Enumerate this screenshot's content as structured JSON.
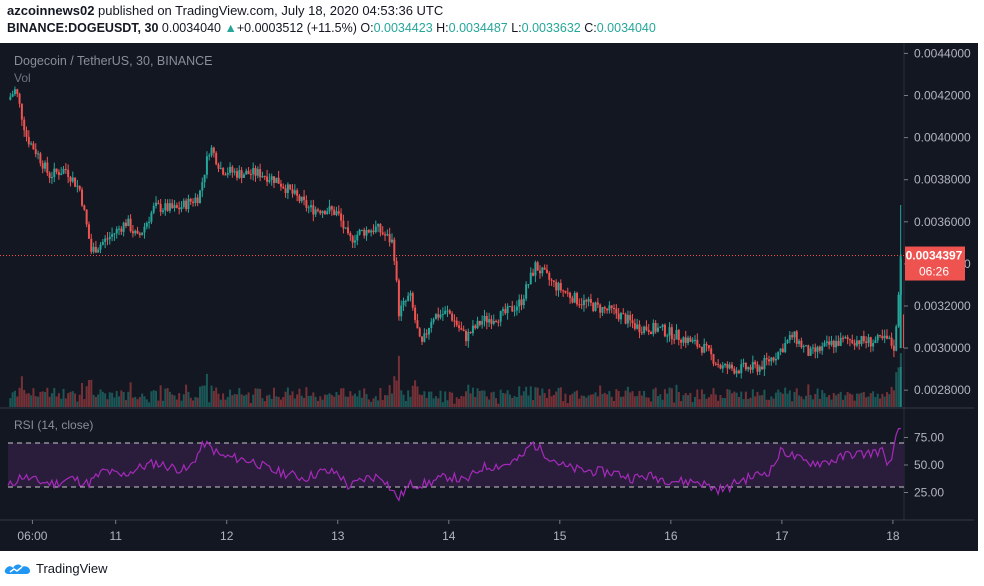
{
  "publish_line": {
    "user": "azcoinnews02",
    "text": " published on TradingView.com, July 18, 2020 04:53:36 UTC"
  },
  "ohlc_line": {
    "symbol": "BINANCE:DOGEUSDT, 30",
    "last": "0.0034040",
    "change_arrow": "▲",
    "change": "+0.0003512 (+11.5%)",
    "o_label": "O:",
    "o": "0.0034423",
    "h_label": "H:",
    "h": "0.0034487",
    "l_label": "L:",
    "l": "0.0033632",
    "c_label": "C:",
    "c": "0.0034040"
  },
  "footer": {
    "brand": "TradingView"
  },
  "colors": {
    "background": "#131722",
    "up": "#26a69a",
    "down": "#ef5350",
    "rsi_line": "#a52aba",
    "rsi_band": "#2a1d3b",
    "price_line": "#ef5350",
    "price_label_bg": "#ef5350",
    "axis_text": "#b2b5be"
  },
  "chart_data": {
    "type": "candlestick",
    "title": "Dogecoin / TetherUS, 30, BINANCE",
    "volume_label": "Vol",
    "ylim": [
      0.00272,
      0.00444
    ],
    "y_ticks": [
      "0.0044000",
      "0.0042000",
      "0.0040000",
      "0.0038000",
      "0.0036000",
      "0.0034000",
      "0.0032000",
      "0.0030000",
      "0.0028000"
    ],
    "x_ticks": [
      "06:00",
      "11",
      "12",
      "13",
      "14",
      "15",
      "16",
      "17",
      "18"
    ],
    "x_tick_days": [
      10.25,
      11,
      12,
      13,
      14,
      15,
      16,
      17,
      18
    ],
    "x_range_days": [
      10.03,
      18.1
    ],
    "current_price": {
      "value": "0.0034397",
      "countdown": "06:26"
    },
    "price_path": [
      [
        10.03,
        0.00418
      ],
      [
        10.1,
        0.00423
      ],
      [
        10.2,
        0.004
      ],
      [
        10.3,
        0.00392
      ],
      [
        10.4,
        0.00382
      ],
      [
        10.55,
        0.00385
      ],
      [
        10.68,
        0.00375
      ],
      [
        10.78,
        0.00346
      ],
      [
        10.95,
        0.00353
      ],
      [
        11.1,
        0.0036
      ],
      [
        11.2,
        0.00352
      ],
      [
        11.35,
        0.00367
      ],
      [
        11.55,
        0.00366
      ],
      [
        11.75,
        0.00372
      ],
      [
        11.85,
        0.00396
      ],
      [
        11.95,
        0.00385
      ],
      [
        12.1,
        0.00383
      ],
      [
        12.3,
        0.00383
      ],
      [
        12.45,
        0.0038
      ],
      [
        12.6,
        0.00373
      ],
      [
        12.75,
        0.00366
      ],
      [
        12.9,
        0.00366
      ],
      [
        13.0,
        0.00364
      ],
      [
        13.1,
        0.00351
      ],
      [
        13.2,
        0.00355
      ],
      [
        13.35,
        0.00357
      ],
      [
        13.5,
        0.0035
      ],
      [
        13.55,
        0.00317
      ],
      [
        13.65,
        0.00325
      ],
      [
        13.75,
        0.003
      ],
      [
        13.85,
        0.00315
      ],
      [
        14.0,
        0.00317
      ],
      [
        14.15,
        0.00305
      ],
      [
        14.3,
        0.00313
      ],
      [
        14.5,
        0.00316
      ],
      [
        14.65,
        0.00322
      ],
      [
        14.78,
        0.00339
      ],
      [
        14.95,
        0.0033
      ],
      [
        15.15,
        0.00323
      ],
      [
        15.35,
        0.00319
      ],
      [
        15.5,
        0.00317
      ],
      [
        15.7,
        0.0031
      ],
      [
        15.9,
        0.00309
      ],
      [
        16.1,
        0.00305
      ],
      [
        16.3,
        0.003
      ],
      [
        16.45,
        0.00291
      ],
      [
        16.6,
        0.0029
      ],
      [
        16.8,
        0.00291
      ],
      [
        16.95,
        0.00297
      ],
      [
        17.1,
        0.00306
      ],
      [
        17.25,
        0.00297
      ],
      [
        17.45,
        0.00302
      ],
      [
        17.6,
        0.00304
      ],
      [
        17.8,
        0.00303
      ],
      [
        17.95,
        0.00304
      ],
      [
        18.02,
        0.003
      ],
      [
        18.07,
        0.00344
      ]
    ],
    "rsi": {
      "label": "RSI (14, close)",
      "ylim": [
        0,
        100
      ],
      "y_ticks": [
        "75.00",
        "50.00",
        "25.00"
      ],
      "bands": [
        70,
        30
      ],
      "path": [
        [
          10.03,
          30
        ],
        [
          10.15,
          40
        ],
        [
          10.3,
          35
        ],
        [
          10.45,
          33
        ],
        [
          10.6,
          38
        ],
        [
          10.75,
          33
        ],
        [
          10.9,
          45
        ],
        [
          11.05,
          40
        ],
        [
          11.2,
          47
        ],
        [
          11.35,
          52
        ],
        [
          11.5,
          48
        ],
        [
          11.65,
          45
        ],
        [
          11.8,
          70
        ],
        [
          11.95,
          58
        ],
        [
          12.1,
          56
        ],
        [
          12.25,
          53
        ],
        [
          12.4,
          45
        ],
        [
          12.55,
          42
        ],
        [
          12.7,
          38
        ],
        [
          12.85,
          44
        ],
        [
          13.0,
          43
        ],
        [
          13.1,
          30
        ],
        [
          13.25,
          38
        ],
        [
          13.4,
          40
        ],
        [
          13.5,
          25
        ],
        [
          13.55,
          20
        ],
        [
          13.65,
          32
        ],
        [
          13.8,
          33
        ],
        [
          14.0,
          40
        ],
        [
          14.15,
          35
        ],
        [
          14.3,
          48
        ],
        [
          14.5,
          50
        ],
        [
          14.65,
          56
        ],
        [
          14.75,
          70
        ],
        [
          14.9,
          58
        ],
        [
          15.05,
          48
        ],
        [
          15.2,
          45
        ],
        [
          15.35,
          44
        ],
        [
          15.5,
          43
        ],
        [
          15.65,
          38
        ],
        [
          15.8,
          40
        ],
        [
          15.95,
          37
        ],
        [
          16.1,
          35
        ],
        [
          16.25,
          35
        ],
        [
          16.4,
          28
        ],
        [
          16.5,
          28
        ],
        [
          16.6,
          35
        ],
        [
          16.75,
          40
        ],
        [
          16.9,
          45
        ],
        [
          17.0,
          64
        ],
        [
          17.1,
          58
        ],
        [
          17.2,
          53
        ],
        [
          17.35,
          52
        ],
        [
          17.5,
          55
        ],
        [
          17.6,
          60
        ],
        [
          17.75,
          60
        ],
        [
          17.9,
          63
        ],
        [
          17.98,
          48
        ],
        [
          18.05,
          85
        ],
        [
          18.08,
          77
        ]
      ]
    }
  }
}
